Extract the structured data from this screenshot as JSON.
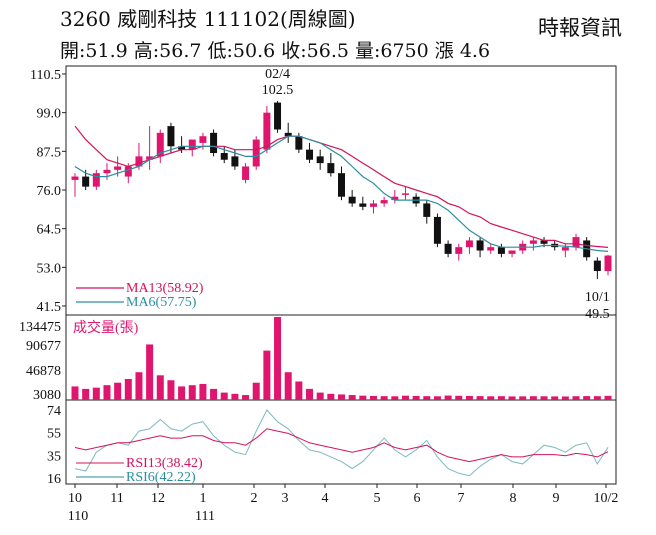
{
  "header": {
    "title": "3260  威剛科技  111102(周線圖)",
    "quote": "開:51.9 高:56.7 低:50.6 收:56.5 量:6750 漲 4.6",
    "source": "時報資訊"
  },
  "colors": {
    "up": "#e0156e",
    "down": "#111111",
    "ma13": "#d4145a",
    "ma6": "#2a8ea0",
    "vol": "#e0156e"
  },
  "chart_data": [
    {
      "type": "candlestick",
      "title": "3260 威剛科技 111102(周線圖)",
      "price_ticks": [
        "110.5",
        "99.0",
        "87.5",
        "76.0",
        "64.5",
        "53.0",
        "41.5"
      ],
      "ylim": [
        41.5,
        110.5
      ],
      "x_ticks": [
        "10",
        "11",
        "12",
        "1",
        "2",
        "3",
        "4",
        "5",
        "6",
        "7",
        "8",
        "9",
        "10/2"
      ],
      "x_subticks": [
        "110",
        "111"
      ],
      "annotations": [
        {
          "label": "02/4",
          "value": "102.5"
        },
        {
          "label": "10/1",
          "value": "49.5"
        }
      ],
      "legend": [
        {
          "name": "MA13(58.92)",
          "color": "#d4145a"
        },
        {
          "name": "MA6(57.75)",
          "color": "#2a8ea0"
        }
      ],
      "candles": [
        {
          "o": 79,
          "h": 81,
          "l": 74,
          "c": 80
        },
        {
          "o": 80,
          "h": 82,
          "l": 76,
          "c": 77
        },
        {
          "o": 77,
          "h": 82,
          "l": 76,
          "c": 81
        },
        {
          "o": 81,
          "h": 84,
          "l": 79,
          "c": 82
        },
        {
          "o": 82,
          "h": 86,
          "l": 80,
          "c": 83
        },
        {
          "o": 80,
          "h": 84,
          "l": 78,
          "c": 83
        },
        {
          "o": 83,
          "h": 90,
          "l": 82,
          "c": 86
        },
        {
          "o": 85,
          "h": 95,
          "l": 82,
          "c": 86
        },
        {
          "o": 86,
          "h": 94,
          "l": 84,
          "c": 93
        },
        {
          "o": 95,
          "h": 96,
          "l": 87,
          "c": 89
        },
        {
          "o": 89,
          "h": 92,
          "l": 87,
          "c": 88
        },
        {
          "o": 88,
          "h": 91,
          "l": 86,
          "c": 91
        },
        {
          "o": 90,
          "h": 93,
          "l": 88,
          "c": 92
        },
        {
          "o": 93,
          "h": 94,
          "l": 86,
          "c": 87
        },
        {
          "o": 87,
          "h": 89,
          "l": 84,
          "c": 85
        },
        {
          "o": 86,
          "h": 88,
          "l": 82,
          "c": 83
        },
        {
          "o": 79,
          "h": 84,
          "l": 78,
          "c": 83
        },
        {
          "o": 83,
          "h": 92,
          "l": 82,
          "c": 91
        },
        {
          "o": 88,
          "h": 101,
          "l": 87,
          "c": 99
        },
        {
          "o": 102,
          "h": 102.5,
          "l": 93,
          "c": 94
        },
        {
          "o": 93,
          "h": 96,
          "l": 90,
          "c": 92
        },
        {
          "o": 92,
          "h": 93,
          "l": 87,
          "c": 88
        },
        {
          "o": 88,
          "h": 90,
          "l": 84,
          "c": 85
        },
        {
          "o": 86,
          "h": 88,
          "l": 82,
          "c": 84
        },
        {
          "o": 84,
          "h": 87,
          "l": 80,
          "c": 81
        },
        {
          "o": 81,
          "h": 83,
          "l": 73,
          "c": 74
        },
        {
          "o": 74,
          "h": 76,
          "l": 71,
          "c": 72
        },
        {
          "o": 72,
          "h": 74,
          "l": 70,
          "c": 71
        },
        {
          "o": 71,
          "h": 73,
          "l": 69,
          "c": 72
        },
        {
          "o": 72,
          "h": 74,
          "l": 71,
          "c": 73
        },
        {
          "o": 73,
          "h": 76,
          "l": 72,
          "c": 74
        },
        {
          "o": 75,
          "h": 77,
          "l": 73,
          "c": 75
        },
        {
          "o": 74,
          "h": 75,
          "l": 71,
          "c": 72
        },
        {
          "o": 72,
          "h": 73,
          "l": 66,
          "c": 68
        },
        {
          "o": 68,
          "h": 69,
          "l": 59,
          "c": 60
        },
        {
          "o": 60,
          "h": 61,
          "l": 56,
          "c": 57
        },
        {
          "o": 57,
          "h": 60,
          "l": 55,
          "c": 59
        },
        {
          "o": 59,
          "h": 62,
          "l": 57,
          "c": 61
        },
        {
          "o": 61,
          "h": 62,
          "l": 56,
          "c": 58
        },
        {
          "o": 58,
          "h": 60,
          "l": 57,
          "c": 59
        },
        {
          "o": 59,
          "h": 60,
          "l": 56,
          "c": 57
        },
        {
          "o": 57,
          "h": 58,
          "l": 56,
          "c": 58
        },
        {
          "o": 58,
          "h": 61,
          "l": 57,
          "c": 60
        },
        {
          "o": 60,
          "h": 62,
          "l": 58,
          "c": 61
        },
        {
          "o": 61,
          "h": 62,
          "l": 59,
          "c": 60
        },
        {
          "o": 60,
          "h": 61,
          "l": 58,
          "c": 59
        },
        {
          "o": 58,
          "h": 60,
          "l": 56,
          "c": 59
        },
        {
          "o": 59,
          "h": 63,
          "l": 58,
          "c": 62
        },
        {
          "o": 61,
          "h": 62,
          "l": 55,
          "c": 56
        },
        {
          "o": 55,
          "h": 56,
          "l": 49.5,
          "c": 51.9
        },
        {
          "o": 51.9,
          "h": 56.7,
          "l": 50.6,
          "c": 56.5
        }
      ],
      "ma13": [
        95,
        91,
        88,
        85,
        84,
        83,
        84,
        85,
        86,
        87,
        88,
        88,
        89,
        89,
        89,
        88,
        88,
        88,
        89,
        91,
        92,
        92,
        91,
        90,
        89,
        88,
        86,
        84,
        82,
        80,
        78,
        77,
        76,
        75,
        74,
        72,
        71,
        69,
        68,
        66,
        65,
        64,
        63,
        62,
        61,
        61,
        60,
        60,
        59.5,
        59.2,
        58.92
      ],
      "ma6": [
        83,
        81,
        80,
        80,
        81,
        82,
        83,
        85,
        87,
        88,
        89,
        89,
        89,
        89,
        88,
        87,
        86,
        86,
        88,
        90,
        92,
        92,
        91,
        90,
        88,
        86,
        83,
        80,
        78,
        75,
        73,
        73,
        73,
        73,
        72,
        70,
        67,
        64,
        62,
        60,
        59,
        59,
        59,
        59,
        59.5,
        59.5,
        59.3,
        59,
        58.5,
        58,
        57.75
      ]
    },
    {
      "type": "bar",
      "title": "成交量(張)",
      "ticks": [
        "134475",
        "90677",
        "46878",
        "3080"
      ],
      "ylim": [
        3080,
        134475
      ],
      "values": [
        22000,
        18000,
        20000,
        24000,
        28000,
        34000,
        45000,
        90000,
        40000,
        32000,
        22000,
        24000,
        26000,
        18000,
        12000,
        10000,
        8000,
        28000,
        80000,
        134475,
        45000,
        30000,
        18000,
        12000,
        10000,
        9000,
        8000,
        7000,
        6500,
        6200,
        6000,
        7000,
        6500,
        6200,
        6000,
        7200,
        6800,
        6500,
        6300,
        6000,
        6200,
        5800,
        5900,
        6100,
        6000,
        5800,
        5700,
        6100,
        6300,
        6200,
        6750
      ]
    },
    {
      "type": "line",
      "ticks": [
        "74",
        "55",
        "35",
        "16"
      ],
      "ylim": [
        16,
        74
      ],
      "legend": [
        {
          "name": "RSI13(38.42)",
          "color": "#d4145a"
        },
        {
          "name": "RSI6(42.22)",
          "color": "#2a8ea0"
        }
      ],
      "rsi13": [
        42,
        40,
        42,
        44,
        46,
        46,
        48,
        50,
        52,
        50,
        50,
        52,
        52,
        48,
        46,
        46,
        44,
        50,
        58,
        56,
        54,
        50,
        46,
        44,
        42,
        40,
        38,
        40,
        42,
        46,
        42,
        40,
        42,
        44,
        38,
        34,
        32,
        30,
        32,
        34,
        36,
        34,
        34,
        36,
        36,
        36,
        35,
        37,
        36,
        34,
        38.42
      ],
      "rsi6": [
        24,
        22,
        38,
        44,
        46,
        44,
        56,
        58,
        66,
        58,
        56,
        62,
        64,
        52,
        44,
        38,
        36,
        56,
        74,
        64,
        58,
        48,
        40,
        38,
        34,
        30,
        24,
        30,
        40,
        50,
        40,
        34,
        40,
        48,
        34,
        24,
        20,
        18,
        26,
        32,
        36,
        30,
        28,
        36,
        44,
        42,
        38,
        44,
        46,
        28,
        42.22
      ]
    }
  ]
}
